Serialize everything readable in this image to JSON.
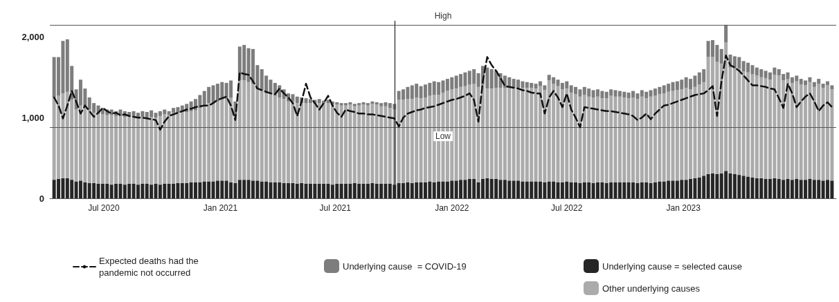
{
  "chart_data": {
    "type": "bar",
    "stacked": true,
    "legend": "bottom",
    "marker": "none",
    "x": [
      "2020-04-11",
      "2020-04-18",
      "2020-04-25",
      "2020-05-02",
      "2020-05-09",
      "2020-05-16",
      "2020-05-23",
      "2020-05-30",
      "2020-06-06",
      "2020-06-13",
      "2020-06-20",
      "2020-06-27",
      "2020-07-04",
      "2020-07-11",
      "2020-07-18",
      "2020-07-25",
      "2020-08-01",
      "2020-08-08",
      "2020-08-15",
      "2020-08-22",
      "2020-08-29",
      "2020-09-05",
      "2020-09-12",
      "2020-09-19",
      "2020-09-26",
      "2020-10-03",
      "2020-10-10",
      "2020-10-17",
      "2020-10-24",
      "2020-10-31",
      "2020-11-07",
      "2020-11-14",
      "2020-11-21",
      "2020-11-28",
      "2020-12-05",
      "2020-12-12",
      "2020-12-19",
      "2020-12-26",
      "2021-01-02",
      "2021-01-09",
      "2021-01-16",
      "2021-01-23",
      "2021-01-30",
      "2021-02-06",
      "2021-02-13",
      "2021-02-20",
      "2021-02-27",
      "2021-03-06",
      "2021-03-13",
      "2021-03-20",
      "2021-03-27",
      "2021-04-03",
      "2021-04-10",
      "2021-04-17",
      "2021-04-24",
      "2021-05-01",
      "2021-05-08",
      "2021-05-15",
      "2021-05-22",
      "2021-05-29",
      "2021-06-05",
      "2021-06-12",
      "2021-06-19",
      "2021-06-26",
      "2021-07-03",
      "2021-07-10",
      "2021-07-17",
      "2021-07-24",
      "2021-07-31",
      "2021-08-07",
      "2021-08-14",
      "2021-08-21",
      "2021-08-28",
      "2021-09-04",
      "2021-09-11",
      "2021-09-18",
      "2021-09-25",
      "2021-10-02",
      "2021-10-09",
      "2021-10-16",
      "2021-10-23",
      "2021-10-30",
      "2021-11-06",
      "2021-11-13",
      "2021-11-20",
      "2021-11-27",
      "2021-12-04",
      "2021-12-11",
      "2021-12-18",
      "2021-12-25",
      "2022-01-01",
      "2022-01-08",
      "2022-01-15",
      "2022-01-22",
      "2022-01-29",
      "2022-02-05",
      "2022-02-12",
      "2022-02-19",
      "2022-02-26",
      "2022-03-05",
      "2022-03-12",
      "2022-03-19",
      "2022-03-26",
      "2022-04-02",
      "2022-04-09",
      "2022-04-16",
      "2022-04-23",
      "2022-04-30",
      "2022-05-07",
      "2022-05-14",
      "2022-05-21",
      "2022-05-28",
      "2022-06-04",
      "2022-06-11",
      "2022-06-18",
      "2022-06-25",
      "2022-07-02",
      "2022-07-09",
      "2022-07-16",
      "2022-07-23",
      "2022-07-30",
      "2022-08-06",
      "2022-08-13",
      "2022-08-20",
      "2022-08-27",
      "2022-09-03",
      "2022-09-10",
      "2022-09-17",
      "2022-09-24",
      "2022-10-01",
      "2022-10-08",
      "2022-10-15",
      "2022-10-22",
      "2022-10-29",
      "2022-11-05",
      "2022-11-12",
      "2022-11-19",
      "2022-11-26",
      "2022-12-03",
      "2022-12-10",
      "2022-12-17",
      "2022-12-24",
      "2022-12-31",
      "2023-01-07",
      "2023-01-14",
      "2023-01-21",
      "2023-01-28",
      "2023-02-04",
      "2023-02-11",
      "2023-02-18",
      "2023-02-25",
      "2023-03-04",
      "2023-03-11",
      "2023-03-18",
      "2023-03-25",
      "2023-04-01",
      "2023-04-08",
      "2023-04-15",
      "2023-04-22",
      "2023-04-29",
      "2023-05-06",
      "2023-05-13",
      "2023-05-20",
      "2023-05-27",
      "2023-06-03",
      "2023-06-10",
      "2023-06-17",
      "2023-06-24",
      "2023-07-01",
      "2023-07-08",
      "2023-07-15",
      "2023-07-22",
      "2023-07-29",
      "2023-08-05",
      "2023-08-12",
      "2023-08-19",
      "2023-08-26"
    ],
    "series": [
      {
        "name": "Underlying cause = selected cause",
        "color": "#262626",
        "values": [
          230,
          240,
          250,
          250,
          230,
          210,
          220,
          200,
          190,
          190,
          180,
          180,
          180,
          170,
          180,
          180,
          170,
          180,
          180,
          170,
          180,
          180,
          170,
          180,
          170,
          180,
          180,
          180,
          190,
          190,
          190,
          200,
          200,
          200,
          210,
          210,
          210,
          220,
          220,
          220,
          200,
          190,
          230,
          230,
          230,
          220,
          220,
          210,
          210,
          200,
          200,
          200,
          190,
          190,
          190,
          180,
          190,
          180,
          180,
          180,
          180,
          180,
          180,
          170,
          180,
          180,
          180,
          180,
          190,
          180,
          180,
          180,
          190,
          180,
          180,
          180,
          180,
          170,
          190,
          190,
          200,
          190,
          200,
          200,
          200,
          210,
          200,
          210,
          210,
          210,
          220,
          220,
          230,
          230,
          240,
          240,
          200,
          240,
          250,
          240,
          240,
          230,
          230,
          220,
          220,
          220,
          210,
          210,
          210,
          210,
          210,
          200,
          210,
          210,
          200,
          200,
          210,
          200,
          200,
          190,
          200,
          200,
          190,
          200,
          200,
          190,
          200,
          200,
          200,
          200,
          200,
          200,
          190,
          200,
          200,
          190,
          200,
          210,
          210,
          220,
          220,
          220,
          230,
          230,
          240,
          250,
          260,
          280,
          300,
          310,
          300,
          310,
          340,
          310,
          300,
          290,
          280,
          270,
          260,
          250,
          250,
          240,
          240,
          250,
          240,
          230,
          240,
          230,
          240,
          230,
          230,
          240,
          230,
          230,
          220,
          230,
          220
        ]
      },
      {
        "name": "Other underlying causes",
        "color": "#ababab",
        "values": [
          1020,
          1030,
          1050,
          1070,
          990,
          890,
          930,
          930,
          910,
          870,
          870,
          860,
          850,
          860,
          840,
          840,
          840,
          830,
          840,
          830,
          830,
          820,
          840,
          820,
          850,
          860,
          850,
          880,
          870,
          880,
          880,
          880,
          890,
          920,
          940,
          970,
          970,
          980,
          1000,
          1010,
          1050,
          830,
          1230,
          1230,
          1210,
          1200,
          1130,
          1130,
          1090,
          1090,
          1070,
          1050,
          1040,
          1010,
          1010,
          1000,
          990,
          1000,
          1000,
          990,
          1000,
          990,
          1000,
          990,
          980,
          970,
          970,
          980,
          950,
          970,
          980,
          970,
          980,
          980,
          960,
          960,
          940,
          930,
          1030,
          1030,
          1030,
          1040,
          1050,
          1040,
          1050,
          1060,
          1080,
          1070,
          1100,
          1120,
          1130,
          1140,
          1150,
          1160,
          1170,
          1180,
          1180,
          1170,
          1110,
          1120,
          1130,
          1140,
          1140,
          1150,
          1150,
          1150,
          1160,
          1160,
          1160,
          1150,
          1180,
          1140,
          1250,
          1210,
          1190,
          1150,
          1150,
          1110,
          1090,
          1070,
          1080,
          1060,
          1060,
          1060,
          1040,
          1050,
          1070,
          1060,
          1060,
          1050,
          1040,
          1050,
          1040,
          1060,
          1040,
          1070,
          1070,
          1080,
          1090,
          1100,
          1110,
          1120,
          1120,
          1140,
          1110,
          1130,
          1150,
          1160,
          1450,
          1440,
          1390,
          1360,
          1590,
          1310,
          1310,
          1320,
          1290,
          1290,
          1280,
          1270,
          1250,
          1250,
          1230,
          1280,
          1280,
          1230,
          1240,
          1200,
          1210,
          1180,
          1170,
          1200,
          1150,
          1190,
          1150,
          1170,
          1130
        ]
      },
      {
        "name": "Underlying cause  = COVID-19",
        "color": "#7d7d7d",
        "values": [
          500,
          480,
          650,
          650,
          420,
          250,
          320,
          230,
          150,
          120,
          100,
          80,
          70,
          70,
          60,
          80,
          70,
          60,
          60,
          60,
          70,
          70,
          80,
          60,
          60,
          60,
          50,
          60,
          70,
          80,
          100,
          120,
          140,
          160,
          180,
          200,
          220,
          220,
          220,
          200,
          210,
          180,
          420,
          440,
          420,
          430,
          300,
          260,
          220,
          180,
          160,
          150,
          120,
          100,
          90,
          80,
          70,
          60,
          50,
          50,
          50,
          40,
          40,
          40,
          30,
          30,
          30,
          30,
          30,
          30,
          30,
          30,
          30,
          30,
          40,
          50,
          60,
          70,
          110,
          130,
          150,
          170,
          170,
          150,
          160,
          160,
          170,
          160,
          150,
          150,
          150,
          160,
          160,
          170,
          170,
          180,
          170,
          230,
          260,
          240,
          210,
          180,
          150,
          130,
          110,
          100,
          80,
          70,
          60,
          60,
          60,
          60,
          70,
          80,
          80,
          80,
          90,
          90,
          90,
          90,
          100,
          100,
          90,
          90,
          90,
          80,
          80,
          80,
          70,
          70,
          70,
          80,
          70,
          80,
          80,
          80,
          90,
          90,
          100,
          100,
          110,
          110,
          120,
          130,
          130,
          140,
          150,
          160,
          200,
          210,
          210,
          180,
          220,
          160,
          150,
          140,
          130,
          120,
          110,
          100,
          100,
          90,
          90,
          90,
          80,
          80,
          80,
          70,
          70,
          70,
          60,
          60,
          60,
          60,
          50,
          50,
          50
        ]
      },
      {
        "name": "Expected deaths had the pandemic not occurred",
        "type": "line",
        "color": "#111111",
        "line_style": "dashed",
        "values": [
          1250,
          1150,
          990,
          1150,
          1330,
          1200,
          1050,
          1150,
          1080,
          1010,
          1060,
          1120,
          1080,
          1050,
          1060,
          1030,
          1040,
          1020,
          1010,
          1000,
          1000,
          990,
          980,
          970,
          850,
          950,
          1020,
          1040,
          1060,
          1080,
          1100,
          1110,
          1130,
          1140,
          1150,
          1150,
          1180,
          1220,
          1240,
          1260,
          1150,
          970,
          1560,
          1540,
          1530,
          1450,
          1360,
          1340,
          1320,
          1300,
          1290,
          1360,
          1300,
          1250,
          1180,
          1020,
          1200,
          1420,
          1250,
          1180,
          1100,
          1180,
          1270,
          1150,
          1060,
          1010,
          1100,
          1080,
          1070,
          1050,
          1050,
          1040,
          1040,
          1030,
          1020,
          1010,
          1000,
          990,
          890,
          1000,
          1050,
          1070,
          1090,
          1100,
          1120,
          1130,
          1140,
          1160,
          1180,
          1200,
          1220,
          1230,
          1250,
          1270,
          1300,
          1220,
          950,
          1450,
          1750,
          1650,
          1580,
          1490,
          1390,
          1380,
          1370,
          1360,
          1340,
          1330,
          1310,
          1300,
          1300,
          1050,
          1250,
          1330,
          1250,
          1130,
          1300,
          1100,
          1000,
          880,
          1130,
          1120,
          1110,
          1100,
          1090,
          1080,
          1080,
          1070,
          1060,
          1050,
          1040,
          1020,
          970,
          1000,
          1050,
          980,
          1050,
          1100,
          1150,
          1160,
          1180,
          1200,
          1220,
          1240,
          1260,
          1280,
          1290,
          1300,
          1340,
          1390,
          1020,
          1450,
          1770,
          1650,
          1620,
          1580,
          1520,
          1460,
          1400,
          1400,
          1390,
          1380,
          1360,
          1350,
          1240,
          1120,
          1420,
          1300,
          1130,
          1200,
          1260,
          1300,
          1200,
          1080,
          1150,
          1190,
          1130
        ]
      }
    ],
    "xlim": [
      "2020-04-07",
      "2023-08-30"
    ],
    "xticks": [
      {
        "value": "2020-07-01",
        "label": "Jul 2020"
      },
      {
        "value": "2021-01-01",
        "label": "Jan 2021"
      },
      {
        "value": "2021-07-01",
        "label": "Jul 2021"
      },
      {
        "value": "2022-01-01",
        "label": "Jan 2022"
      },
      {
        "value": "2022-07-01",
        "label": "Jul 2022"
      },
      {
        "value": "2023-01-01",
        "label": "Jan 2023"
      }
    ],
    "ylim": [
      0,
      2200
    ],
    "yticks": [
      0,
      {
        "value": 1000,
        "label": "1,000"
      },
      {
        "value": 2000,
        "label": "2,000"
      }
    ],
    "ref_lines": [
      {
        "axis": "y",
        "value": 2150,
        "label": "High",
        "color": "#555555"
      },
      {
        "axis": "y",
        "value": 880,
        "label": "Low",
        "color": "#555555"
      },
      {
        "axis": "x",
        "value": "2021-10-02",
        "label": null,
        "color": "#222222"
      }
    ]
  }
}
